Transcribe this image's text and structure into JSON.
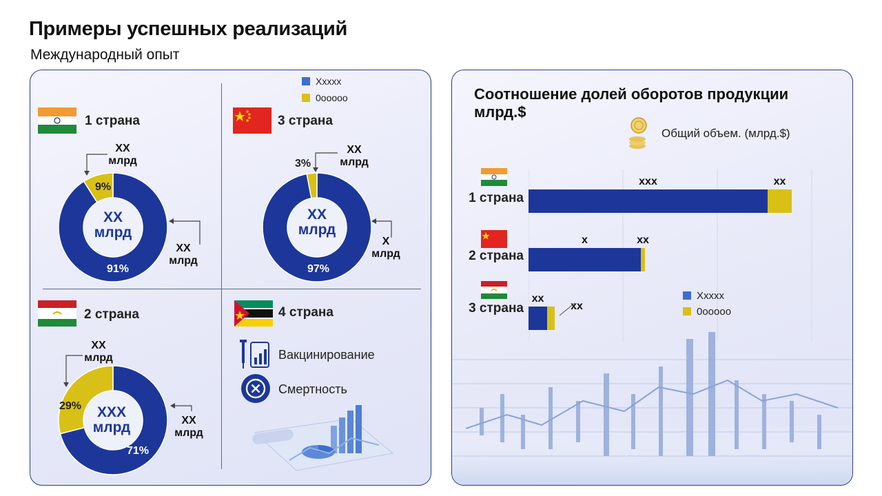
{
  "header": {
    "title": "Примеры успешных реализаций",
    "subtitle": "Международный опыт"
  },
  "legend_left": {
    "items": [
      "Xxxxx",
      "0ooooo"
    ]
  },
  "colors": {
    "blue": "#1c3799",
    "yellow": "#d9c016",
    "panel_border": "#2a3a8a"
  },
  "countries": {
    "c1": {
      "name": "1 страна",
      "flag": "india-flag",
      "center": "XX\nмлрд",
      "callout_top": "XX\nмлрд",
      "callout_right": "XX\nмлрд",
      "pct_main": "91%",
      "pct_second": "9%"
    },
    "c3": {
      "name": "3 страна",
      "flag": "china-flag",
      "center": "XX\nмлрд",
      "callout_top": "XX\nмлрд",
      "callout_right": "X\nмлрд",
      "pct_main": "97%",
      "pct_second": "3%"
    },
    "c2": {
      "name": "2 страна",
      "flag": "tajikistan-flag",
      "center": "XXX\nмлрд",
      "callout_top": "XX\nмлрд",
      "callout_right": "XX\nмлрд",
      "pct_main": "71%",
      "pct_second": "29%"
    },
    "c4": {
      "name": "4 страна",
      "flag": "mozambique-flag",
      "feature1": "Вакцинирование",
      "feature2": "Смертность",
      "icon1": "vaccine-chart-icon",
      "icon2": "close-circle-icon"
    }
  },
  "right": {
    "title": "Соотношение долей оборотов продукции млрд.$",
    "total_label": "Общий объем. (млрд.$)",
    "total_icon": "coins-icon",
    "legend": [
      "Xxxxx",
      "0ooooo"
    ]
  },
  "chart_data": [
    {
      "type": "pie",
      "title": "1 страна",
      "labels": [
        "Xxxxx",
        "0ooooo"
      ],
      "values": [
        91,
        9
      ],
      "center_label": "XX млрд"
    },
    {
      "type": "pie",
      "title": "3 страна",
      "labels": [
        "Xxxxx",
        "0ooooo"
      ],
      "values": [
        97,
        3
      ],
      "center_label": "XX млрд"
    },
    {
      "type": "pie",
      "title": "2 страна",
      "labels": [
        "Xxxxx",
        "0ooooo"
      ],
      "values": [
        71,
        29
      ],
      "center_label": "XXX млрд"
    },
    {
      "type": "bar",
      "orientation": "horizontal",
      "stacked": true,
      "title": "Соотношение долей оборотов продукции млрд.$",
      "categories": [
        "1 страна",
        "2 страна",
        "3 страна"
      ],
      "series": [
        {
          "name": "Xxxxx",
          "values": [
            347,
            163,
            27
          ],
          "data_labels": [
            "xxx",
            "x",
            "xx"
          ]
        },
        {
          "name": "0ooooo",
          "values": [
            35,
            6,
            11
          ],
          "data_labels": [
            "xx",
            "xx",
            "xx"
          ]
        }
      ],
      "xlim": [
        0,
        410
      ],
      "grid": true,
      "legend": "bottom-right"
    }
  ]
}
